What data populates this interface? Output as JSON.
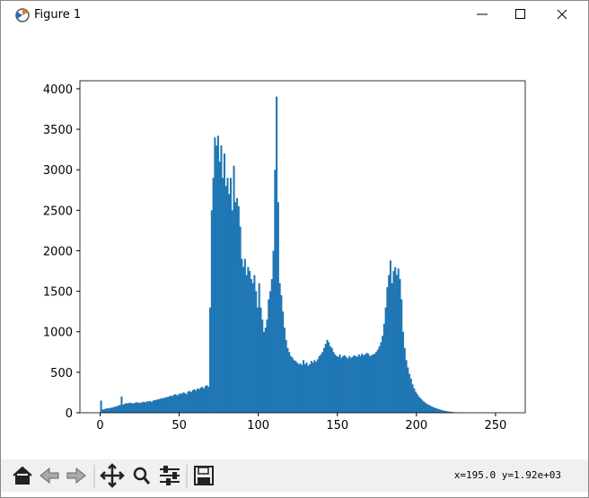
{
  "window": {
    "title": "Figure 1",
    "status": "x=195.0 y=1.92e+03"
  },
  "chart_data": {
    "type": "histogram",
    "color": "#1f77b4",
    "bins": [
      0,
      1,
      2,
      3,
      4,
      5,
      6,
      7,
      8,
      9,
      10,
      11,
      12,
      13,
      14,
      15,
      16,
      17,
      18,
      19,
      20,
      21,
      22,
      23,
      24,
      25,
      26,
      27,
      28,
      29,
      30,
      31,
      32,
      33,
      34,
      35,
      36,
      37,
      38,
      39,
      40,
      41,
      42,
      43,
      44,
      45,
      46,
      47,
      48,
      49,
      50,
      51,
      52,
      53,
      54,
      55,
      56,
      57,
      58,
      59,
      60,
      61,
      62,
      63,
      64,
      65,
      66,
      67,
      68,
      69,
      70,
      71,
      72,
      73,
      74,
      75,
      76,
      77,
      78,
      79,
      80,
      81,
      82,
      83,
      84,
      85,
      86,
      87,
      88,
      89,
      90,
      91,
      92,
      93,
      94,
      95,
      96,
      97,
      98,
      99,
      100,
      101,
      102,
      103,
      104,
      105,
      106,
      107,
      108,
      109,
      110,
      111,
      112,
      113,
      114,
      115,
      116,
      117,
      118,
      119,
      120,
      121,
      122,
      123,
      124,
      125,
      126,
      127,
      128,
      129,
      130,
      131,
      132,
      133,
      134,
      135,
      136,
      137,
      138,
      139,
      140,
      141,
      142,
      143,
      144,
      145,
      146,
      147,
      148,
      149,
      150,
      151,
      152,
      153,
      154,
      155,
      156,
      157,
      158,
      159,
      160,
      161,
      162,
      163,
      164,
      165,
      166,
      167,
      168,
      169,
      170,
      171,
      172,
      173,
      174,
      175,
      176,
      177,
      178,
      179,
      180,
      181,
      182,
      183,
      184,
      185,
      186,
      187,
      188,
      189,
      190,
      191,
      192,
      193,
      194,
      195,
      196,
      197,
      198,
      199,
      200,
      201,
      202,
      203,
      204,
      205,
      206,
      207,
      208,
      209,
      210,
      211,
      212,
      213,
      214,
      215,
      216,
      217,
      218,
      219,
      220,
      221,
      222,
      223,
      224,
      225,
      226,
      227,
      228,
      229,
      230,
      231,
      232,
      233,
      234,
      235,
      236,
      237,
      238,
      239,
      240,
      241,
      242,
      243,
      244,
      245,
      246,
      247,
      248,
      249,
      250,
      251,
      252,
      253,
      254,
      255,
      256
    ],
    "counts": [
      150,
      40,
      45,
      50,
      55,
      55,
      60,
      65,
      70,
      75,
      80,
      90,
      95,
      200,
      100,
      110,
      120,
      115,
      125,
      120,
      115,
      120,
      125,
      130,
      120,
      125,
      130,
      135,
      130,
      140,
      140,
      145,
      135,
      150,
      155,
      160,
      165,
      170,
      180,
      175,
      185,
      190,
      195,
      200,
      210,
      205,
      220,
      230,
      215,
      225,
      240,
      235,
      250,
      245,
      230,
      260,
      270,
      255,
      280,
      290,
      275,
      300,
      290,
      310,
      320,
      300,
      330,
      340,
      320,
      1300,
      2500,
      2900,
      3400,
      3300,
      3420,
      3100,
      3300,
      2900,
      3200,
      2800,
      2900,
      2700,
      2900,
      2500,
      3050,
      2600,
      2650,
      2550,
      2300,
      1900,
      1800,
      1900,
      1700,
      1800,
      1750,
      1650,
      1600,
      1700,
      1500,
      1300,
      1600,
      1300,
      1150,
      1000,
      1050,
      1150,
      1400,
      1500,
      1650,
      2000,
      3000,
      3904,
      2600,
      1600,
      1450,
      1250,
      1050,
      900,
      800,
      750,
      700,
      680,
      650,
      640,
      620,
      600,
      610,
      590,
      650,
      600,
      620,
      580,
      600,
      640,
      620,
      650,
      630,
      660,
      700,
      720,
      750,
      800,
      850,
      900,
      870,
      820,
      800,
      750,
      720,
      700,
      690,
      720,
      680,
      700,
      710,
      690,
      670,
      700,
      680,
      690,
      710,
      700,
      690,
      720,
      700,
      730,
      710,
      720,
      740,
      730,
      700,
      710,
      720,
      730,
      750,
      780,
      820,
      870,
      950,
      1100,
      1300,
      1550,
      1700,
      1880,
      1600,
      1750,
      1800,
      1700,
      1780,
      1650,
      1400,
      1000,
      800,
      650,
      560,
      480,
      420,
      350,
      300,
      260,
      230,
      200,
      180,
      160,
      140,
      125,
      110,
      100,
      90,
      80,
      70,
      62,
      55,
      48,
      42,
      36,
      30,
      26,
      22,
      18,
      15,
      12,
      10,
      8,
      6,
      5,
      4,
      3,
      2,
      2,
      1,
      1,
      0,
      0,
      0,
      0,
      0,
      0,
      0,
      0,
      0,
      0,
      0,
      0,
      0,
      0,
      0,
      0,
      0,
      0,
      0,
      0,
      0,
      0,
      0,
      0
    ],
    "xlim": [
      -12.8,
      268.8
    ],
    "ylim": [
      0,
      4099.2
    ],
    "xticks": [
      0,
      50,
      100,
      150,
      200,
      250
    ],
    "yticks": [
      0,
      500,
      1000,
      1500,
      2000,
      2500,
      3000,
      3500,
      4000
    ]
  }
}
